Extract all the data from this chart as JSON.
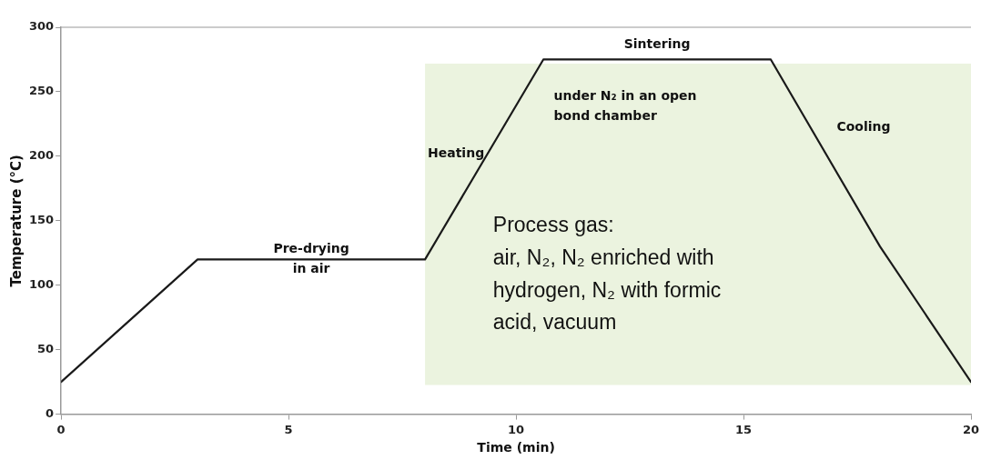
{
  "chart_data": {
    "type": "line",
    "xlabel": "Time (min)",
    "ylabel": "Temperature (°C)",
    "x": [
      0,
      3,
      8,
      10.6,
      15.6,
      18,
      20
    ],
    "series": [
      {
        "color": "#1a1a1a",
        "values": [
          25,
          120,
          120,
          275,
          275,
          130,
          25
        ]
      }
    ],
    "xlim": [
      0,
      20
    ],
    "xticks": [
      0,
      5,
      10,
      15,
      20
    ],
    "ylim": [
      0,
      300
    ],
    "yticks": [
      0,
      50,
      100,
      150,
      200,
      250,
      300
    ],
    "grid": false,
    "legend": false,
    "marker": "none",
    "line_style": "solid",
    "bands": [
      {
        "axis": "x",
        "from": 8,
        "to": 20,
        "color": "#ebf3df"
      }
    ],
    "annotations": [
      {
        "text": "Pre-drying in air",
        "x": 5.5,
        "y": 120
      },
      "Heating",
      {
        "text": "Sintering",
        "x": 13.1,
        "y": 275
      },
      "under N₂ in an open bond chamber",
      "Cooling",
      "Process gas: air, N₂, N₂ enriched with hydrogen, N₂ with formic acid, vacuum"
    ]
  }
}
